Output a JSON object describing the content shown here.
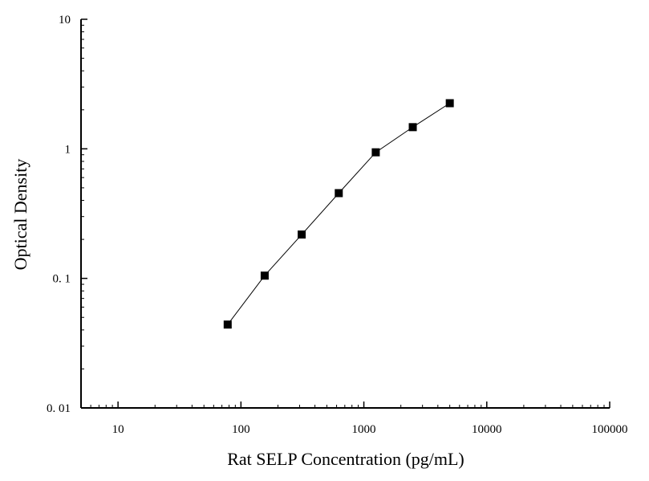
{
  "chart_data": {
    "type": "scatter",
    "title": "",
    "xlabel": "Rat SELP Concentration (pg/mL)",
    "ylabel": "Optical Density",
    "x_scale": "log",
    "y_scale": "log",
    "xlim": [
      5,
      100000
    ],
    "ylim": [
      0.01,
      10
    ],
    "x_ticks": [
      {
        "value": 10,
        "label": "10"
      },
      {
        "value": 100,
        "label": "100"
      },
      {
        "value": 1000,
        "label": "1000"
      },
      {
        "value": 10000,
        "label": "10000"
      },
      {
        "value": 100000,
        "label": "100000"
      }
    ],
    "y_ticks": [
      {
        "value": 0.01,
        "label": "0. 01"
      },
      {
        "value": 0.1,
        "label": "0. 1"
      },
      {
        "value": 1,
        "label": "1"
      },
      {
        "value": 10,
        "label": "10"
      }
    ],
    "grid": false,
    "legend": "none",
    "series": [
      {
        "marker": "square",
        "color": "#000000",
        "connected": true,
        "points": [
          {
            "x": 78,
            "y": 0.044
          },
          {
            "x": 156,
            "y": 0.105
          },
          {
            "x": 312,
            "y": 0.218
          },
          {
            "x": 625,
            "y": 0.455
          },
          {
            "x": 1250,
            "y": 0.94
          },
          {
            "x": 2500,
            "y": 1.47
          },
          {
            "x": 5000,
            "y": 2.25
          }
        ]
      }
    ]
  }
}
